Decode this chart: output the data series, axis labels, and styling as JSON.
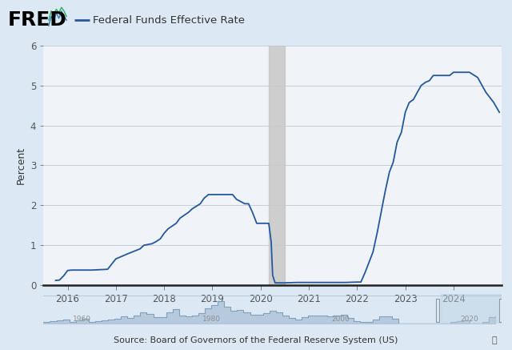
{
  "title": "Federal Funds Effective Rate",
  "ylabel": "Percent",
  "source": "Source: Board of Governors of the Federal Reserve System (US)",
  "line_color": "#2457a0",
  "background_color": "#dce9f5",
  "plot_bg_color": "#f0f4f9",
  "recession_color": "#c8c8c8",
  "ylim": [
    0,
    6
  ],
  "yticks": [
    0,
    1,
    2,
    3,
    4,
    5,
    6
  ],
  "recession_start": 2020.17,
  "recession_end": 2020.5,
  "xlim_start": 2015.5,
  "xlim_end": 2025.0,
  "series": {
    "dates": [
      2015.75,
      2015.83,
      2015.92,
      2016.0,
      2016.08,
      2016.5,
      2016.83,
      2016.92,
      2017.0,
      2017.25,
      2017.5,
      2017.58,
      2017.75,
      2017.83,
      2017.92,
      2018.0,
      2018.08,
      2018.25,
      2018.33,
      2018.5,
      2018.58,
      2018.75,
      2018.83,
      2018.92,
      2019.0,
      2019.08,
      2019.17,
      2019.25,
      2019.33,
      2019.42,
      2019.5,
      2019.58,
      2019.67,
      2019.75,
      2019.83,
      2019.92,
      2020.0,
      2020.08,
      2020.17,
      2020.22,
      2020.25,
      2020.3,
      2020.33,
      2020.42,
      2020.5,
      2020.75,
      2021.0,
      2021.25,
      2021.5,
      2021.75,
      2022.0,
      2022.08,
      2022.17,
      2022.25,
      2022.33,
      2022.42,
      2022.5,
      2022.58,
      2022.67,
      2022.75,
      2022.83,
      2022.92,
      2023.0,
      2023.08,
      2023.17,
      2023.25,
      2023.33,
      2023.42,
      2023.5,
      2023.58,
      2023.67,
      2023.75,
      2023.83,
      2023.92,
      2024.0,
      2024.17,
      2024.33,
      2024.5,
      2024.67,
      2024.83,
      2024.95
    ],
    "values": [
      0.12,
      0.13,
      0.24,
      0.37,
      0.38,
      0.38,
      0.4,
      0.54,
      0.66,
      0.79,
      0.91,
      1.0,
      1.04,
      1.09,
      1.16,
      1.3,
      1.41,
      1.55,
      1.68,
      1.82,
      1.91,
      2.04,
      2.18,
      2.27,
      2.27,
      2.27,
      2.27,
      2.27,
      2.27,
      2.27,
      2.15,
      2.1,
      2.04,
      2.04,
      1.83,
      1.55,
      1.55,
      1.55,
      1.55,
      1.08,
      0.25,
      0.06,
      0.06,
      0.06,
      0.06,
      0.07,
      0.07,
      0.07,
      0.07,
      0.07,
      0.08,
      0.08,
      0.33,
      0.58,
      0.83,
      1.33,
      1.83,
      2.33,
      2.83,
      3.08,
      3.58,
      3.83,
      4.33,
      4.57,
      4.65,
      4.83,
      5.0,
      5.08,
      5.12,
      5.25,
      5.25,
      5.25,
      5.25,
      5.25,
      5.33,
      5.33,
      5.33,
      5.2,
      4.83,
      4.58,
      4.33
    ]
  },
  "mini_fill_color": "#a8bdd4",
  "mini_line_color": "#7a9ab5",
  "mini_highlight_color": "#bacfe0",
  "mini_xlim": [
    1954,
    2025
  ],
  "mini_hist_years": [
    1954,
    1955,
    1956,
    1957,
    1958,
    1959,
    1960,
    1961,
    1962,
    1963,
    1964,
    1965,
    1966,
    1967,
    1968,
    1969,
    1970,
    1971,
    1972,
    1973,
    1974,
    1975,
    1976,
    1977,
    1978,
    1979,
    1980,
    1981,
    1982,
    1983,
    1984,
    1985,
    1986,
    1987,
    1988,
    1989,
    1990,
    1991,
    1992,
    1993,
    1994,
    1995,
    1996,
    1997,
    1998,
    1999,
    2000,
    2001,
    2002,
    2003,
    2004,
    2005,
    2006,
    2007,
    2008,
    2009,
    2010,
    2011,
    2012,
    2013,
    2014,
    2015,
    2016,
    2017,
    2018,
    2019,
    2020,
    2021,
    2022,
    2023,
    2024
  ],
  "mini_hist_values": [
    1.5,
    1.8,
    2.5,
    3.0,
    1.5,
    2.5,
    3.5,
    1.5,
    2.0,
    2.5,
    3.0,
    3.5,
    5.0,
    4.0,
    5.5,
    8.0,
    7.0,
    4.5,
    4.5,
    8.0,
    10.5,
    6.0,
    5.0,
    6.0,
    7.5,
    11.0,
    13.0,
    16.0,
    12.0,
    9.0,
    10.0,
    8.0,
    6.5,
    6.5,
    7.5,
    9.0,
    8.0,
    6.0,
    4.0,
    3.0,
    4.5,
    6.0,
    5.5,
    5.5,
    5.0,
    5.5,
    6.5,
    4.0,
    1.75,
    1.0,
    1.5,
    3.0,
    5.0,
    5.25,
    3.5,
    0.25,
    0.25,
    0.1,
    0.1,
    0.1,
    0.1,
    0.13,
    0.4,
    1.0,
    1.8,
    2.25,
    0.25,
    0.1,
    1.5,
    4.5,
    5.25
  ]
}
